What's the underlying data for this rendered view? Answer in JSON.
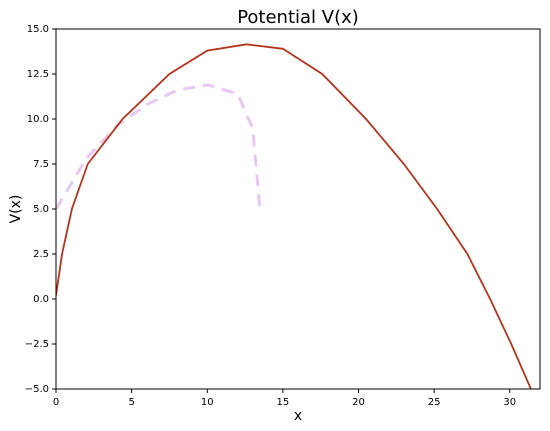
{
  "chart_data": {
    "type": "line",
    "title": "Potential V(x)",
    "xlabel": "x",
    "ylabel": "V(x)",
    "series": [
      {
        "color": "#b5331c",
        "style": "solid",
        "x": [
          0,
          0.4,
          1.05,
          2.1,
          4.4,
          7.5,
          10,
          12.6,
          15,
          17.6,
          20.5,
          23,
          25.2,
          27.2,
          28.7,
          30.1,
          31.4
        ],
        "values": [
          0.2,
          2.5,
          5,
          7.5,
          10,
          12.5,
          13.8,
          14.15,
          13.9,
          12.5,
          10,
          7.5,
          5,
          2.5,
          0,
          -2.5,
          -5
        ]
      },
      {
        "color": "#e8c8f0",
        "style": "dashed",
        "x": [
          0,
          2,
          4,
          6,
          8,
          10,
          12,
          13,
          13.5
        ],
        "values": [
          5,
          7.8,
          9.6,
          10.8,
          11.6,
          11.9,
          11.4,
          9.5,
          4.8
        ]
      }
    ],
    "xlim": [
      0,
      32
    ],
    "xticks": [
      0,
      5,
      10,
      15,
      20,
      25,
      30
    ],
    "ylim": [
      -5,
      15
    ],
    "yticks": [
      {
        "value": -5,
        "label": "−5.0"
      },
      {
        "value": -2.5,
        "label": "−2.5"
      },
      {
        "value": 0,
        "label": "0.0"
      },
      {
        "value": 2.5,
        "label": "2.5"
      },
      {
        "value": 5,
        "label": "5.0"
      },
      {
        "value": 7.5,
        "label": "7.5"
      },
      {
        "value": 10,
        "label": "10.0"
      },
      {
        "value": 12.5,
        "label": "12.5"
      },
      {
        "value": 15,
        "label": "15.0"
      }
    ],
    "grid": false
  }
}
